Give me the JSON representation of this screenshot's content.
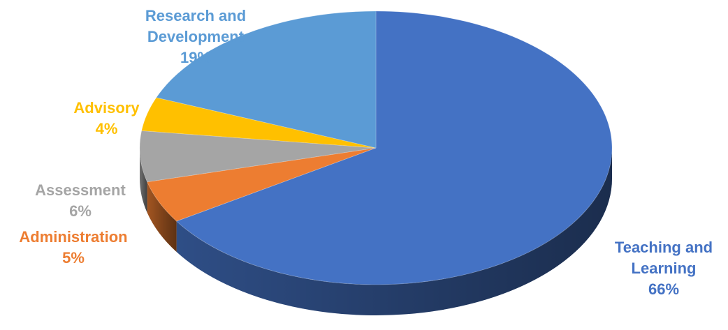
{
  "chart_data": {
    "type": "pie",
    "style": "3d",
    "title": "",
    "slices": [
      {
        "label": "Teaching and Learning",
        "label_lines": [
          "Teaching and",
          "Learning"
        ],
        "value": 66,
        "value_label": "66%",
        "color": "#4472c4",
        "label_color": "#4472c4"
      },
      {
        "label": "Administration",
        "label_lines": [
          "Administration"
        ],
        "value": 5,
        "value_label": "5%",
        "color": "#ed7d31",
        "label_color": "#ed7d31"
      },
      {
        "label": "Assessment",
        "label_lines": [
          "Assessment"
        ],
        "value": 6,
        "value_label": "6%",
        "color": "#a5a5a5",
        "label_color": "#a5a5a5"
      },
      {
        "label": "Advisory",
        "label_lines": [
          "Advisory"
        ],
        "value": 4,
        "value_label": "4%",
        "color": "#ffc000",
        "label_color": "#ffc000"
      },
      {
        "label": "Research and Development",
        "label_lines": [
          "Research and",
          "Development"
        ],
        "value": 19,
        "value_label": "19%",
        "color": "#5b9bd5",
        "label_color": "#5b9bd5"
      }
    ]
  }
}
